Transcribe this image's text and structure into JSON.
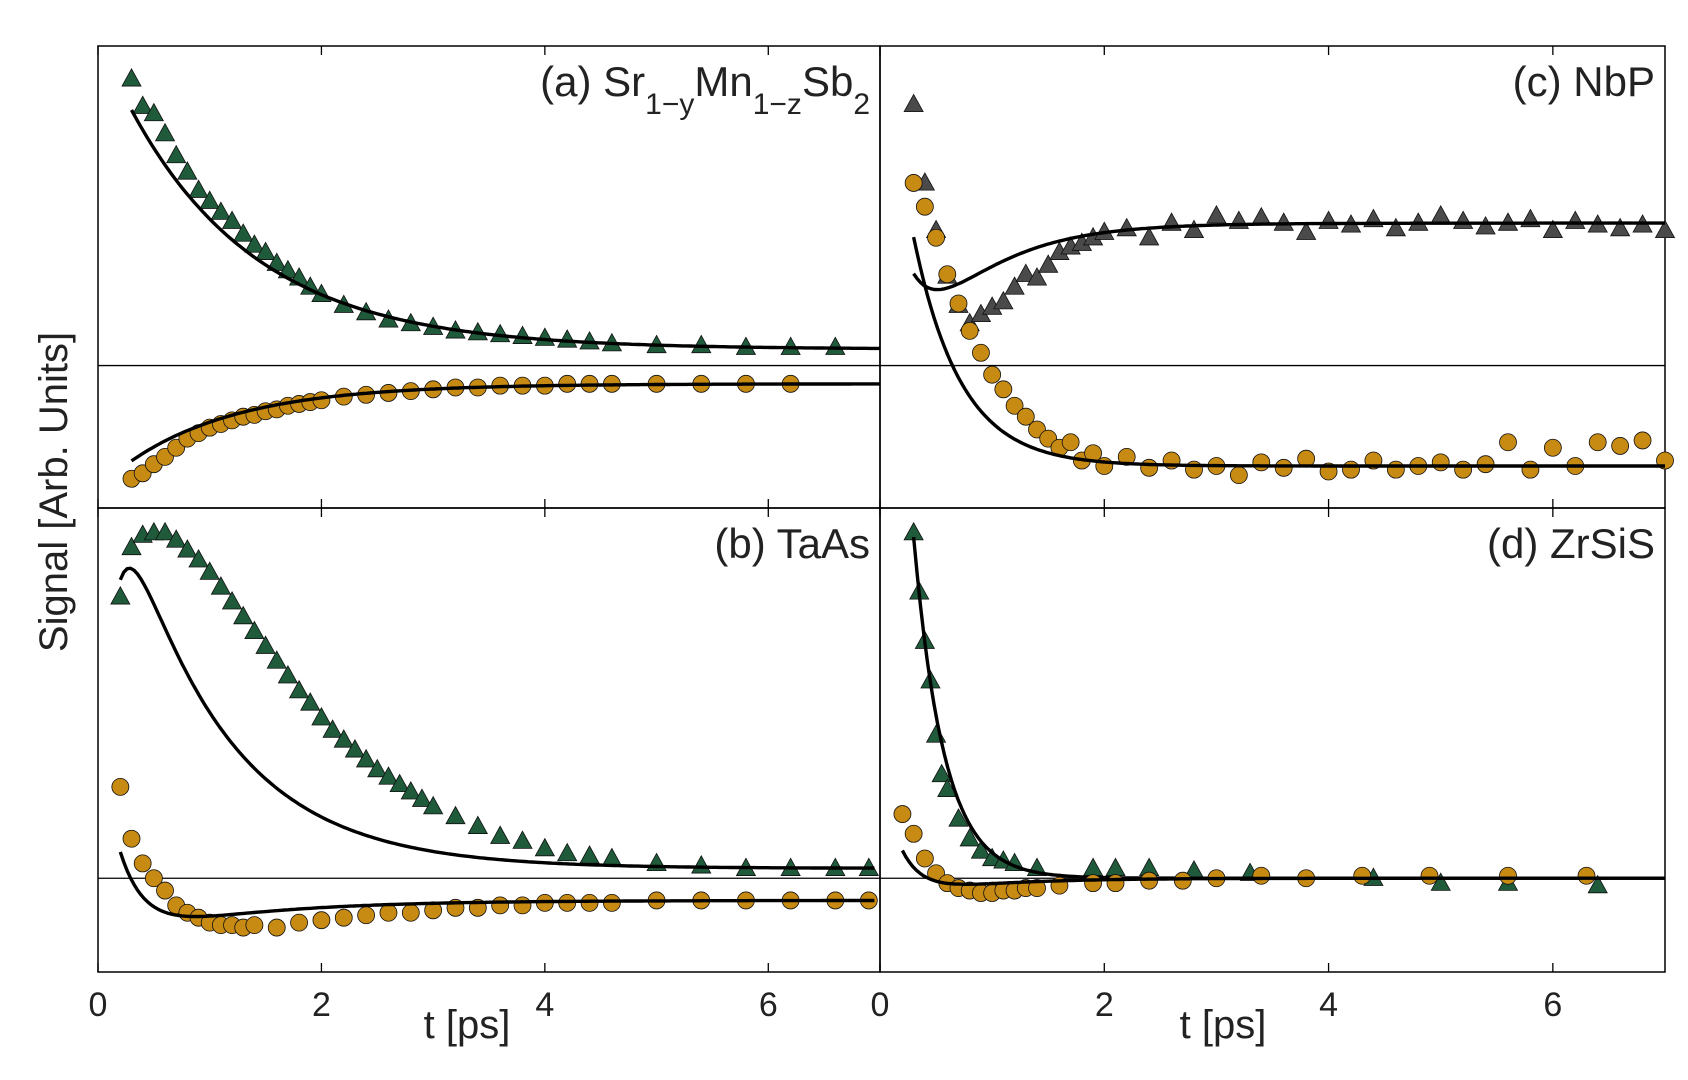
{
  "figure": {
    "ylabel": "Signal [Arb. Units]",
    "xlabel": "t [ps]"
  },
  "colors": {
    "green": "#1f5a3b",
    "orange": "#c78a12",
    "gray": "#4a4a4a",
    "fit": "#000000"
  },
  "chart_data": [
    {
      "id": "a",
      "type": "scatter",
      "label_parts": [
        {
          "t": "(a) Sr",
          "sub": false
        },
        {
          "t": "1−y",
          "sub": true
        },
        {
          "t": "Mn",
          "sub": false
        },
        {
          "t": "1−z",
          "sub": true
        },
        {
          "t": "Sb",
          "sub": false
        },
        {
          "t": "2",
          "sub": true
        }
      ],
      "xlim": [
        0,
        7
      ],
      "ylim": [
        -0.78,
        1.75
      ],
      "xticks": [
        0,
        2,
        4,
        6
      ],
      "baseline": 0,
      "series": [
        {
          "marker": "triangle",
          "color": "green",
          "x": [
            0.3,
            0.4,
            0.5,
            0.6,
            0.7,
            0.8,
            0.9,
            1.0,
            1.1,
            1.2,
            1.3,
            1.4,
            1.5,
            1.6,
            1.7,
            1.8,
            1.9,
            2.0,
            2.2,
            2.4,
            2.6,
            2.8,
            3.0,
            3.2,
            3.4,
            3.6,
            3.8,
            4.0,
            4.2,
            4.4,
            4.6,
            5.0,
            5.4,
            5.8,
            6.2,
            6.6
          ],
          "y": [
            1.57,
            1.42,
            1.38,
            1.27,
            1.15,
            1.06,
            0.96,
            0.9,
            0.84,
            0.79,
            0.72,
            0.66,
            0.62,
            0.56,
            0.52,
            0.48,
            0.43,
            0.39,
            0.33,
            0.29,
            0.25,
            0.23,
            0.21,
            0.19,
            0.18,
            0.17,
            0.16,
            0.15,
            0.14,
            0.13,
            0.12,
            0.11,
            0.11,
            0.1,
            0.1,
            0.1
          ],
          "fit": {
            "kind": "exp",
            "A": 0.09,
            "B": 1.7,
            "tau": 1.15,
            "x0": 0.3,
            "x1": 7.0
          }
        },
        {
          "marker": "circle",
          "color": "orange",
          "x": [
            0.3,
            0.4,
            0.5,
            0.6,
            0.7,
            0.8,
            0.9,
            1.0,
            1.1,
            1.2,
            1.3,
            1.4,
            1.5,
            1.6,
            1.7,
            1.8,
            1.9,
            2.0,
            2.2,
            2.4,
            2.6,
            2.8,
            3.0,
            3.2,
            3.4,
            3.6,
            3.8,
            4.0,
            4.2,
            4.4,
            4.6,
            5.0,
            5.4,
            5.8,
            6.2
          ],
          "y": [
            -0.62,
            -0.59,
            -0.54,
            -0.5,
            -0.45,
            -0.4,
            -0.37,
            -0.34,
            -0.32,
            -0.3,
            -0.28,
            -0.27,
            -0.25,
            -0.24,
            -0.22,
            -0.21,
            -0.2,
            -0.19,
            -0.17,
            -0.16,
            -0.15,
            -0.14,
            -0.13,
            -0.12,
            -0.12,
            -0.11,
            -0.11,
            -0.11,
            -0.1,
            -0.1,
            -0.1,
            -0.1,
            -0.1,
            -0.1,
            -0.1
          ],
          "fit": {
            "kind": "exp",
            "A": -0.1,
            "B": -0.57,
            "tau": 1.0,
            "x0": 0.3,
            "x1": 7.0
          }
        }
      ]
    },
    {
      "id": "c",
      "type": "scatter",
      "label_parts": [
        {
          "t": "(c) NbP",
          "sub": false
        }
      ],
      "xlim": [
        0,
        7
      ],
      "ylim": [
        -0.78,
        1.75
      ],
      "xticks": [
        0,
        2,
        4,
        6
      ],
      "baseline": 0,
      "series": [
        {
          "marker": "triangle",
          "color": "gray",
          "x": [
            0.3,
            0.4,
            0.5,
            0.6,
            0.7,
            0.8,
            0.9,
            1.0,
            1.1,
            1.2,
            1.3,
            1.4,
            1.5,
            1.6,
            1.7,
            1.8,
            1.9,
            2.0,
            2.2,
            2.4,
            2.6,
            2.8,
            3.0,
            3.2,
            3.4,
            3.6,
            3.8,
            4.0,
            4.2,
            4.4,
            4.6,
            4.8,
            5.0,
            5.2,
            5.4,
            5.6,
            5.8,
            6.0,
            6.2,
            6.4,
            6.6,
            6.8,
            7.0
          ],
          "y": [
            1.43,
            1.0,
            0.74,
            0.49,
            0.33,
            0.23,
            0.28,
            0.32,
            0.35,
            0.43,
            0.5,
            0.48,
            0.55,
            0.62,
            0.65,
            0.67,
            0.7,
            0.73,
            0.75,
            0.7,
            0.78,
            0.74,
            0.82,
            0.79,
            0.81,
            0.78,
            0.73,
            0.79,
            0.77,
            0.8,
            0.75,
            0.78,
            0.82,
            0.79,
            0.76,
            0.78,
            0.8,
            0.74,
            0.79,
            0.77,
            0.75,
            0.77,
            0.74
          ],
          "fit": {
            "kind": "dip",
            "A": 0.78,
            "B": 1.98,
            "tau1": 0.23,
            "C": 1.32,
            "tau2": 0.62,
            "x0": 0.3,
            "x1": 7.0
          }
        },
        {
          "marker": "circle",
          "color": "orange",
          "x": [
            0.3,
            0.4,
            0.5,
            0.6,
            0.7,
            0.8,
            0.9,
            1.0,
            1.1,
            1.2,
            1.3,
            1.4,
            1.5,
            1.6,
            1.7,
            1.8,
            1.9,
            2.0,
            2.2,
            2.4,
            2.6,
            2.8,
            3.0,
            3.2,
            3.4,
            3.6,
            3.8,
            4.0,
            4.2,
            4.4,
            4.6,
            4.8,
            5.0,
            5.2,
            5.4,
            5.6,
            5.8,
            6.0,
            6.2,
            6.4,
            6.6,
            6.8,
            7.0
          ],
          "y": [
            1.0,
            0.87,
            0.7,
            0.5,
            0.34,
            0.19,
            0.07,
            -0.05,
            -0.13,
            -0.22,
            -0.28,
            -0.35,
            -0.4,
            -0.45,
            -0.42,
            -0.52,
            -0.48,
            -0.55,
            -0.5,
            -0.56,
            -0.52,
            -0.57,
            -0.55,
            -0.6,
            -0.53,
            -0.56,
            -0.51,
            -0.58,
            -0.57,
            -0.52,
            -0.57,
            -0.55,
            -0.53,
            -0.57,
            -0.54,
            -0.42,
            -0.57,
            -0.45,
            -0.55,
            -0.42,
            -0.44,
            -0.41,
            -0.52
          ],
          "fit": {
            "kind": "exp",
            "A": -0.55,
            "B": 2.56,
            "tau": 0.42,
            "x0": 0.3,
            "x1": 7.0
          }
        }
      ]
    },
    {
      "id": "b",
      "type": "scatter",
      "label_parts": [
        {
          "t": "(b) TaAs",
          "sub": false
        }
      ],
      "xlim": [
        0,
        7
      ],
      "ylim": [
        -0.38,
        1.5
      ],
      "xticks": [
        0,
        2,
        4,
        6
      ],
      "baseline": 0,
      "series": [
        {
          "marker": "triangle",
          "color": "green",
          "x": [
            0.2,
            0.3,
            0.4,
            0.5,
            0.6,
            0.7,
            0.8,
            0.9,
            1.0,
            1.1,
            1.2,
            1.3,
            1.4,
            1.5,
            1.6,
            1.7,
            1.8,
            1.9,
            2.0,
            2.1,
            2.2,
            2.3,
            2.4,
            2.5,
            2.6,
            2.7,
            2.8,
            2.9,
            3.0,
            3.2,
            3.4,
            3.6,
            3.8,
            4.0,
            4.2,
            4.4,
            4.6,
            5.0,
            5.4,
            5.8,
            6.2,
            6.6,
            6.9
          ],
          "y": [
            1.14,
            1.34,
            1.39,
            1.4,
            1.4,
            1.37,
            1.33,
            1.29,
            1.24,
            1.18,
            1.12,
            1.06,
            1.0,
            0.94,
            0.88,
            0.82,
            0.76,
            0.71,
            0.65,
            0.6,
            0.56,
            0.52,
            0.48,
            0.44,
            0.41,
            0.38,
            0.35,
            0.32,
            0.29,
            0.25,
            0.21,
            0.17,
            0.15,
            0.12,
            0.1,
            0.09,
            0.08,
            0.06,
            0.05,
            0.04,
            0.04,
            0.04,
            0.04
          ],
          "fit": {
            "kind": "rise",
            "A": 0.04,
            "B": 1.92,
            "tau1": 0.9,
            "tau2": 0.14,
            "x0": 0.2,
            "x1": 6.95
          }
        },
        {
          "marker": "circle",
          "color": "orange",
          "x": [
            0.2,
            0.3,
            0.4,
            0.5,
            0.6,
            0.7,
            0.8,
            0.9,
            1.0,
            1.1,
            1.2,
            1.3,
            1.4,
            1.6,
            1.8,
            2.0,
            2.2,
            2.4,
            2.6,
            2.8,
            3.0,
            3.2,
            3.4,
            3.6,
            3.8,
            4.0,
            4.2,
            4.4,
            4.6,
            5.0,
            5.4,
            5.8,
            6.2,
            6.6,
            6.9
          ],
          "y": [
            0.37,
            0.16,
            0.06,
            0.0,
            -0.05,
            -0.11,
            -0.14,
            -0.16,
            -0.18,
            -0.19,
            -0.19,
            -0.2,
            -0.19,
            -0.2,
            -0.18,
            -0.17,
            -0.16,
            -0.15,
            -0.14,
            -0.14,
            -0.13,
            -0.12,
            -0.12,
            -0.11,
            -0.11,
            -0.1,
            -0.1,
            -0.1,
            -0.1,
            -0.09,
            -0.09,
            -0.09,
            -0.09,
            -0.09,
            -0.09
          ],
          "fit": {
            "kind": "dip",
            "A": -0.09,
            "B": 0.86,
            "tau1": 0.22,
            "C": 0.18,
            "tau2": 1.1,
            "x0": 0.2,
            "x1": 6.95
          }
        }
      ]
    },
    {
      "id": "d",
      "type": "scatter",
      "label_parts": [
        {
          "t": "(d) ZrSiS",
          "sub": false
        }
      ],
      "xlim": [
        0,
        7
      ],
      "ylim": [
        -0.38,
        1.5
      ],
      "xticks": [
        0,
        2,
        4,
        6
      ],
      "baseline": 0,
      "series": [
        {
          "marker": "triangle",
          "color": "green",
          "x": [
            0.3,
            0.35,
            0.4,
            0.45,
            0.5,
            0.55,
            0.6,
            0.7,
            0.8,
            0.9,
            1.0,
            1.1,
            1.2,
            1.4,
            1.9,
            2.1,
            2.4,
            2.8,
            3.3,
            4.4,
            5.0,
            5.6,
            6.4
          ],
          "y": [
            1.4,
            1.16,
            0.96,
            0.8,
            0.58,
            0.42,
            0.36,
            0.24,
            0.16,
            0.11,
            0.08,
            0.07,
            0.06,
            0.04,
            0.04,
            0.04,
            0.04,
            0.03,
            0.02,
            0.0,
            -0.02,
            -0.02,
            -0.03
          ],
          "fit": {
            "kind": "exp",
            "A": 0.0,
            "B": 4.2,
            "tau": 0.27,
            "x0": 0.3,
            "x1": 7.0
          }
        },
        {
          "marker": "circle",
          "color": "orange",
          "x": [
            0.2,
            0.3,
            0.4,
            0.5,
            0.6,
            0.7,
            0.8,
            0.9,
            1.0,
            1.1,
            1.2,
            1.3,
            1.4,
            1.6,
            1.9,
            2.1,
            2.4,
            2.7,
            3.0,
            3.4,
            3.8,
            4.3,
            4.9,
            5.6,
            6.3
          ],
          "y": [
            0.26,
            0.18,
            0.08,
            0.02,
            -0.02,
            -0.04,
            -0.05,
            -0.06,
            -0.06,
            -0.05,
            -0.05,
            -0.04,
            -0.04,
            -0.03,
            -0.02,
            -0.02,
            -0.01,
            -0.01,
            0.0,
            0.01,
            0.0,
            0.01,
            0.01,
            0.01,
            0.01
          ],
          "fit": {
            "kind": "dip",
            "A": 0.0,
            "B": 0.55,
            "tau1": 0.18,
            "C": 0.09,
            "tau2": 0.75,
            "x0": 0.2,
            "x1": 7.0
          }
        }
      ]
    }
  ]
}
